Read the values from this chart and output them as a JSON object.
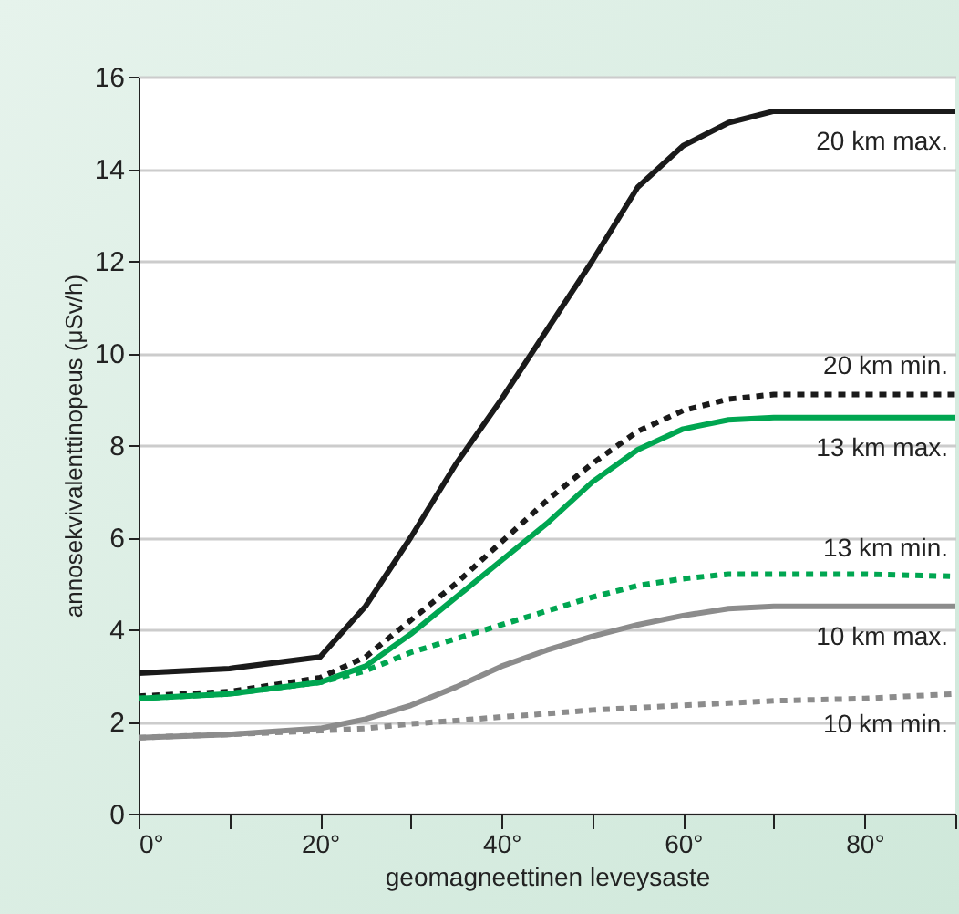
{
  "chart_data": {
    "type": "line",
    "xlabel": "geomagneettinen leveysaste",
    "ylabel": "annosekvivalenttinopeus (μSv/h)",
    "x": [
      0,
      10,
      20,
      25,
      30,
      35,
      40,
      45,
      50,
      55,
      60,
      65,
      70,
      80,
      90
    ],
    "series": [
      {
        "name": "20 km max.",
        "color": "#1a1a1a",
        "line_style": "solid",
        "values": [
          3.05,
          3.15,
          3.4,
          4.5,
          6.0,
          7.6,
          9.0,
          10.5,
          12.0,
          13.6,
          14.5,
          15.0,
          15.25,
          15.25,
          15.25
        ]
      },
      {
        "name": "20 km min.",
        "color": "#1a1a1a",
        "line_style": "dotted",
        "values": [
          2.55,
          2.65,
          2.95,
          3.4,
          4.2,
          5.0,
          5.9,
          6.8,
          7.6,
          8.3,
          8.75,
          9.0,
          9.1,
          9.1,
          9.1
        ]
      },
      {
        "name": "13 km max.",
        "color": "#00a651",
        "line_style": "solid",
        "values": [
          2.5,
          2.6,
          2.85,
          3.2,
          3.9,
          4.7,
          5.5,
          6.3,
          7.2,
          7.9,
          8.35,
          8.55,
          8.6,
          8.6,
          8.6
        ]
      },
      {
        "name": "13 km min.",
        "color": "#00a651",
        "line_style": "dotted",
        "values": [
          2.5,
          2.6,
          2.85,
          3.1,
          3.5,
          3.8,
          4.1,
          4.4,
          4.7,
          4.95,
          5.1,
          5.2,
          5.2,
          5.2,
          5.15
        ]
      },
      {
        "name": "10 km max.",
        "color": "#8c8c8c",
        "line_style": "solid",
        "values": [
          1.65,
          1.72,
          1.85,
          2.05,
          2.35,
          2.75,
          3.2,
          3.55,
          3.85,
          4.1,
          4.3,
          4.45,
          4.5,
          4.5,
          4.5
        ]
      },
      {
        "name": "10 km min.",
        "color": "#8c8c8c",
        "line_style": "dotted",
        "values": [
          1.65,
          1.72,
          1.8,
          1.85,
          1.95,
          2.02,
          2.1,
          2.17,
          2.25,
          2.3,
          2.35,
          2.4,
          2.45,
          2.5,
          2.6
        ]
      }
    ],
    "xlim": [
      0,
      90
    ],
    "xticks": [
      {
        "value": 0,
        "label": "0°"
      },
      {
        "value": 10,
        "label": null
      },
      {
        "value": 20,
        "label": "20°"
      },
      {
        "value": 30,
        "label": null
      },
      {
        "value": 40,
        "label": "40°"
      },
      {
        "value": 50,
        "label": null
      },
      {
        "value": 60,
        "label": "60°"
      },
      {
        "value": 70,
        "label": null
      },
      {
        "value": 80,
        "label": "80°"
      },
      {
        "value": 90,
        "label": null
      }
    ],
    "ylim": [
      0,
      16
    ],
    "yticks": [
      0,
      2,
      4,
      6,
      8,
      10,
      12,
      14,
      16
    ],
    "grid": "y"
  }
}
